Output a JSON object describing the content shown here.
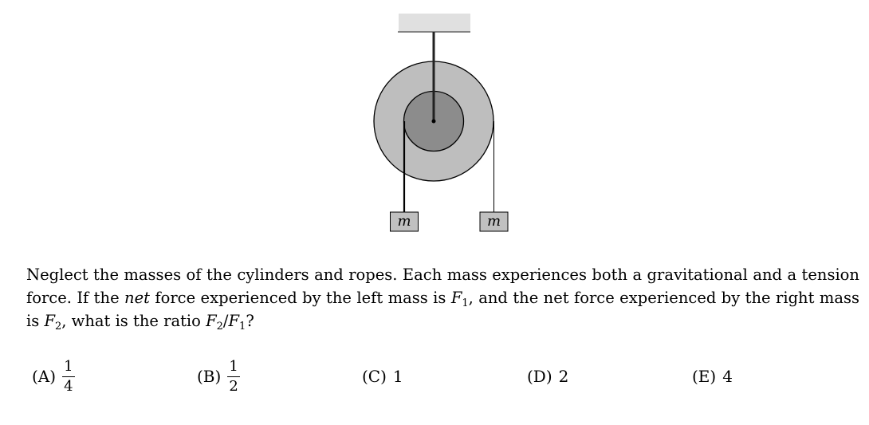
{
  "figure": {
    "left_mass_label": "m",
    "right_mass_label": "m",
    "colors": {
      "ceiling": "#e0e0e0",
      "outer_cylinder": "#bebebe",
      "inner_cylinder": "#8c8c8c",
      "mass_block": "#c0c0c0"
    }
  },
  "question": {
    "part1": "Neglect the masses of the cylinders and ropes. Each mass experiences both a gravitational and a tension force. If the ",
    "emph": "net",
    "part2": " force experienced by the left mass is ",
    "f1_var": "F",
    "f1_sub": "1",
    "part3": ", and the net force experienced by the right mass is ",
    "f2_var": "F",
    "f2_sub": "2",
    "part4": ", what is the ratio ",
    "ratio_num_var": "F",
    "ratio_num_sub": "2",
    "ratio_slash": "/",
    "ratio_den_var": "F",
    "ratio_den_sub": "1",
    "part5": "?"
  },
  "choices": [
    {
      "letter": "(A)",
      "numerator": "1",
      "denominator": "4"
    },
    {
      "letter": "(B)",
      "numerator": "1",
      "denominator": "2"
    },
    {
      "letter": "(C)",
      "value": "1"
    },
    {
      "letter": "(D)",
      "value": "2"
    },
    {
      "letter": "(E)",
      "value": "4"
    }
  ]
}
